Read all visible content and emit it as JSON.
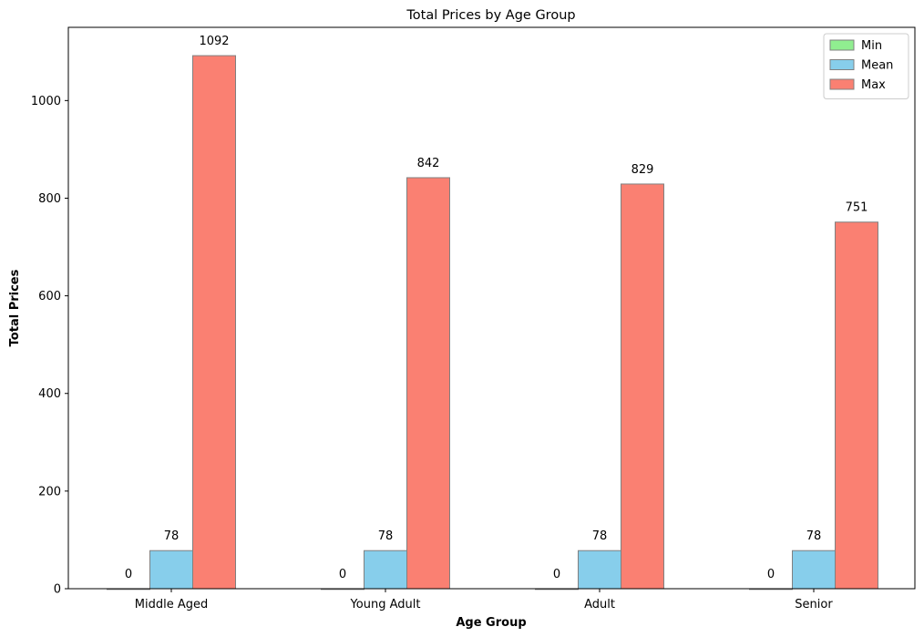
{
  "chart_data": {
    "type": "bar",
    "title": "Total Prices by Age Group",
    "xlabel": "Age Group",
    "ylabel": "Total Prices",
    "categories": [
      "Middle Aged",
      "Young Adult",
      "Adult",
      "Senior"
    ],
    "series": [
      {
        "name": "Min",
        "values": [
          0,
          0,
          0,
          0
        ],
        "color": "#90ee90"
      },
      {
        "name": "Mean",
        "values": [
          78,
          78,
          78,
          78
        ],
        "color": "#87ceeb"
      },
      {
        "name": "Max",
        "values": [
          1092,
          842,
          829,
          751
        ],
        "color": "#fa8072"
      }
    ],
    "ylim": [
      0,
      1150
    ],
    "yticks": [
      0,
      200,
      400,
      600,
      800,
      1000
    ],
    "legend_position": "top-right",
    "grid": false,
    "bar_edge_color": "#808080"
  }
}
